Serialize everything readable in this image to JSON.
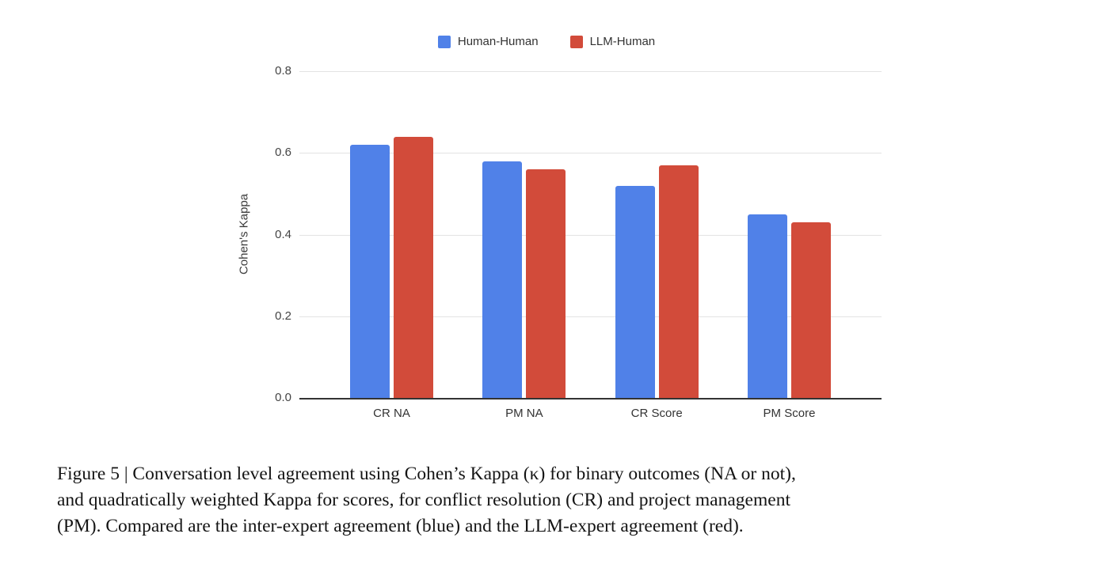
{
  "chart_data": {
    "type": "bar",
    "title": "",
    "xlabel": "",
    "ylabel": "Cohen's Kappa",
    "ylim": [
      0,
      0.8
    ],
    "yticks": [
      "0.0",
      "0.2",
      "0.4",
      "0.6",
      "0.8"
    ],
    "grid": true,
    "legend_position": "top-center",
    "categories": [
      "CR NA",
      "PM NA",
      "CR Score",
      "PM Score"
    ],
    "series": [
      {
        "name": "Human-Human",
        "color": "#5081E8",
        "values": [
          0.62,
          0.58,
          0.52,
          0.45
        ]
      },
      {
        "name": "LLM-Human",
        "color": "#D24B3A",
        "values": [
          0.64,
          0.56,
          0.57,
          0.43
        ]
      }
    ]
  },
  "caption": {
    "lines": [
      "Figure 5 | Conversation level agreement using Cohen’s Kappa (κ) for binary outcomes (NA or not),",
      "and quadratically weighted Kappa for scores, for conflict resolution (CR) and project management",
      "(PM). Compared are the inter-expert agreement (blue) and the LLM-expert agreement (red)."
    ]
  },
  "colors": {
    "gridline": "#e3e3e3",
    "axis_line": "#333333",
    "tick_text": "#444444",
    "caption_text": "#141414"
  }
}
